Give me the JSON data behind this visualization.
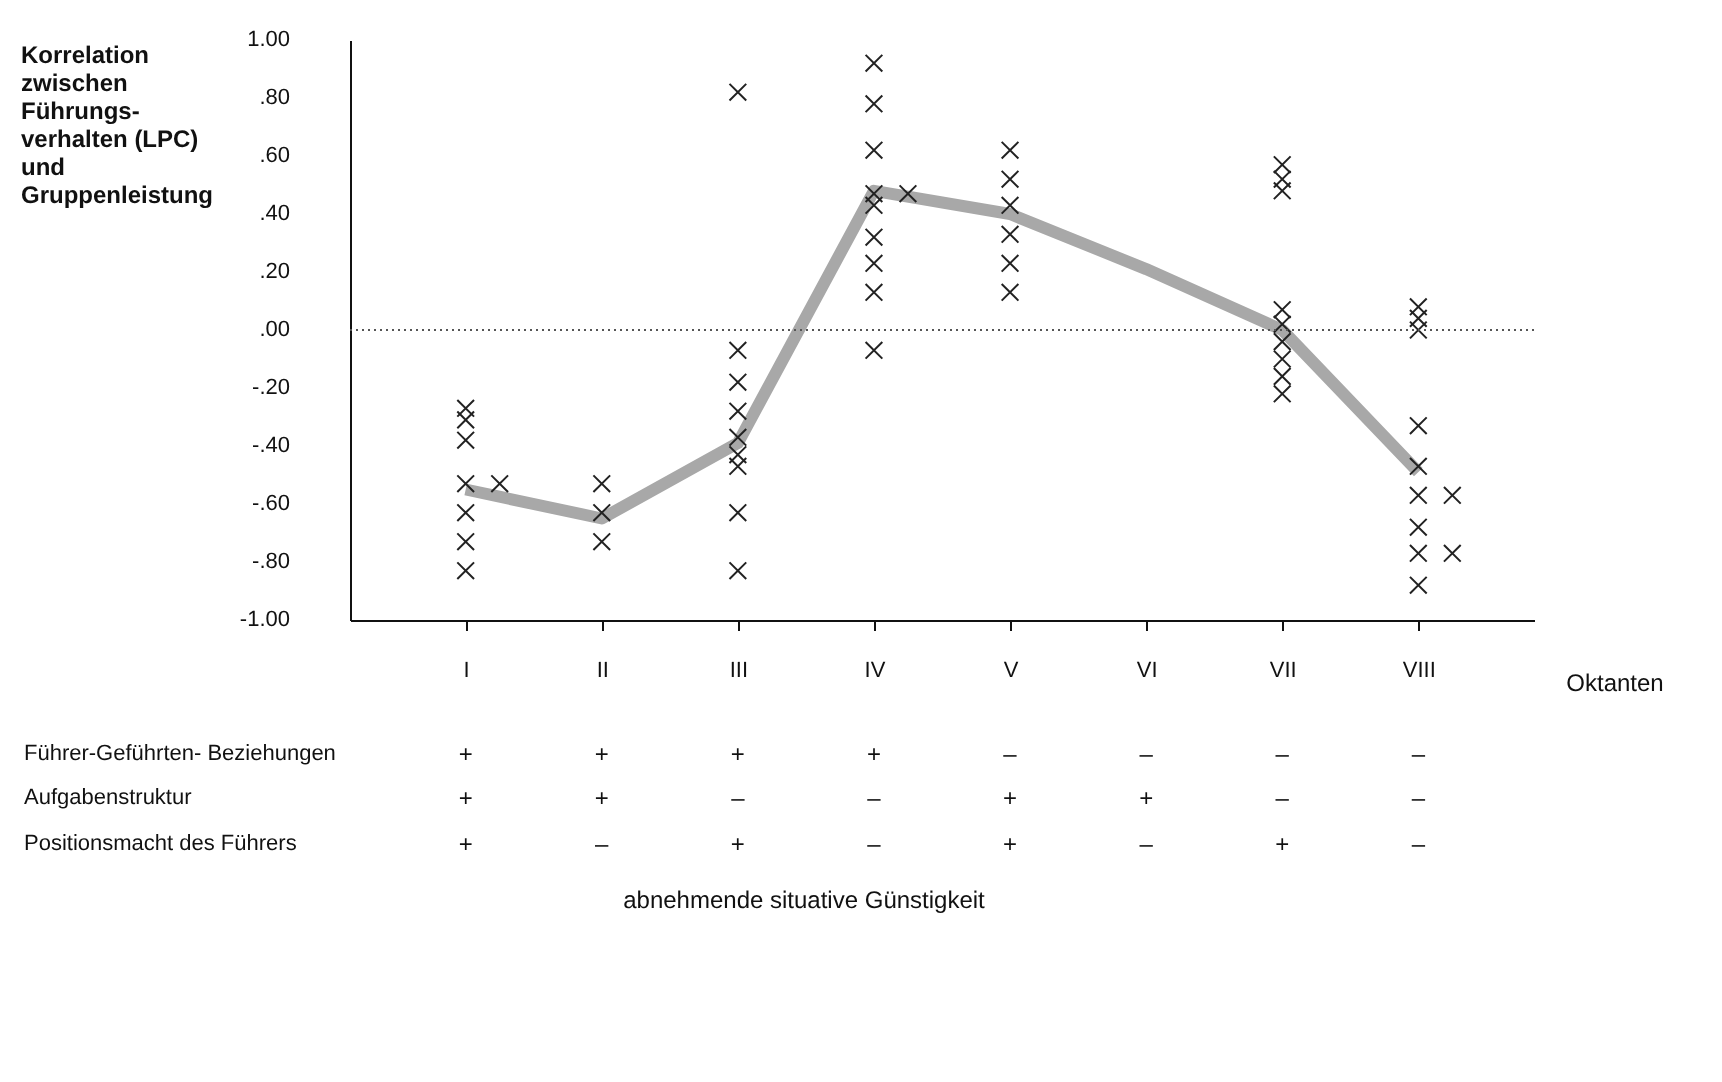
{
  "chart_data": {
    "type": "scatter",
    "ylabel": "Korrelation\nzwischen\nFührungs-\nverhalten (LPC)\nund\nGruppenleistung",
    "xlabel": "Oktanten",
    "categories": [
      "I",
      "II",
      "III",
      "IV",
      "V",
      "VI",
      "VII",
      "VIII"
    ],
    "ylim": [
      -1.0,
      1.0
    ],
    "yticks": [
      {
        "value": 1.0,
        "label": "1.00"
      },
      {
        "value": 0.8,
        "label": ".80"
      },
      {
        "value": 0.6,
        "label": ".60"
      },
      {
        "value": 0.4,
        "label": ".40"
      },
      {
        "value": 0.2,
        "label": ".20"
      },
      {
        "value": 0,
        "label": ".00"
      },
      {
        "value": -0.2,
        "label": "-.20"
      },
      {
        "value": -0.4,
        "label": "-.40"
      },
      {
        "value": -0.6,
        "label": "-.60"
      },
      {
        "value": -0.8,
        "label": "-.80"
      },
      {
        "value": -1.0,
        "label": "-1.00"
      }
    ],
    "grid": false,
    "legend": false,
    "series": [
      {
        "type": "scatter",
        "marker": "cross",
        "color": "#222222",
        "x": [
          "I",
          "I",
          "I",
          "I",
          "I",
          "I",
          "I",
          "I",
          "II",
          "II",
          "II",
          "III",
          "III",
          "III",
          "III",
          "III",
          "III",
          "III",
          "III",
          "III",
          "IV",
          "IV",
          "IV",
          "IV",
          "IV",
          "IV",
          "IV",
          "IV",
          "IV",
          "IV",
          "V",
          "V",
          "V",
          "V",
          "V",
          "V",
          "VII",
          "VII",
          "VII",
          "VII",
          "VII",
          "VII",
          "VII",
          "VII",
          "VII",
          "VIII",
          "VIII",
          "VIII",
          "VIII",
          "VIII",
          "VIII",
          "VIII",
          "VIII",
          "VIII",
          "VIII",
          "VIII"
        ],
        "values": [
          -0.27,
          -0.31,
          -0.38,
          -0.53,
          -0.53,
          -0.63,
          -0.73,
          -0.83,
          -0.53,
          -0.63,
          -0.73,
          0.82,
          -0.07,
          -0.18,
          -0.28,
          -0.37,
          -0.43,
          -0.47,
          -0.63,
          -0.83,
          0.92,
          0.78,
          0.62,
          0.47,
          0.47,
          0.32,
          0.23,
          0.13,
          -0.07,
          0.43,
          0.62,
          0.52,
          0.43,
          0.33,
          0.23,
          0.13,
          0.57,
          0.52,
          0.48,
          0.07,
          0.02,
          -0.04,
          -0.1,
          -0.16,
          -0.22,
          0.08,
          0.04,
          0.0,
          -0.33,
          -0.47,
          -0.57,
          -0.57,
          -0.68,
          -0.77,
          -0.77,
          -0.88
        ]
      },
      {
        "type": "line",
        "marker": "none",
        "color": "#a8a8a8",
        "x": [
          "I",
          "II",
          "III",
          "IV",
          "V",
          "VI",
          "VII",
          "VIII"
        ],
        "values": [
          -0.55,
          -0.65,
          -0.39,
          0.48,
          0.4,
          0.21,
          0.0,
          -0.49
        ]
      }
    ],
    "ref_lines": [
      {
        "axis": "y",
        "value": 0,
        "line_style": "dotted",
        "color": "#555555"
      }
    ],
    "annotations": [
      "Führer-Geführten- Beziehungen",
      "+",
      "+",
      "+",
      "+",
      "–",
      "–",
      "–",
      "–",
      "Aufgabenstruktur",
      "+",
      "+",
      "–",
      "–",
      "+",
      "+",
      "–",
      "–",
      "Positionsmacht des Führers",
      "+",
      "–",
      "+",
      "–",
      "+",
      "–",
      "+",
      "–",
      "abnehmende situative Günstigkeit"
    ]
  }
}
